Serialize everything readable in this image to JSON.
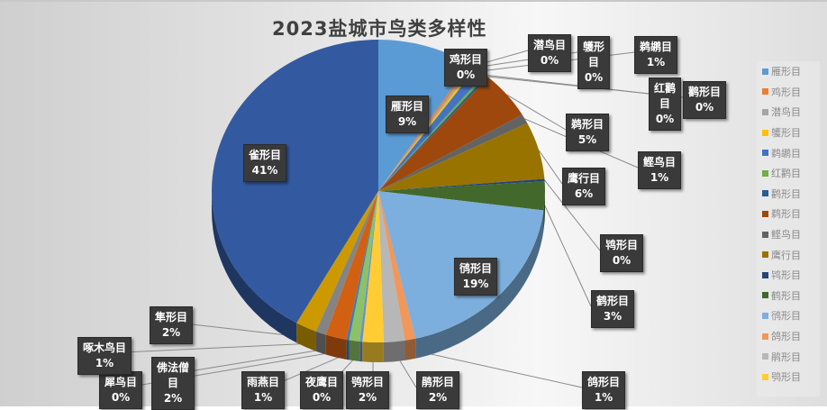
{
  "chart_data": {
    "type": "pie",
    "title": "2023盐城市鸟类多样性",
    "categories": [
      "雁形目",
      "鸡形目",
      "潜鸟目",
      "鹱形目",
      "鹈鹕目",
      "红鹳目",
      "鹳形目",
      "鹈形目",
      "鲣鸟目",
      "鹰行目",
      "鸨形目",
      "鹤形目",
      "鸻形目",
      "鸽形目",
      "鹃形目",
      "鸮形目",
      "夜鹰目",
      "雨燕目",
      "犀鸟目",
      "佛法僧目",
      "啄木鸟目",
      "隼形目",
      "雀形目"
    ],
    "values": [
      9,
      0,
      0,
      0,
      1,
      0,
      0,
      5,
      1,
      6,
      0,
      3,
      19,
      1,
      2,
      2,
      0,
      1,
      0,
      2,
      1,
      2,
      41
    ],
    "value_labels": [
      "9%",
      "0%",
      "0%",
      "0%",
      "1%",
      "0%",
      "0%",
      "5%",
      "1%",
      "6%",
      "0%",
      "3%",
      "19%",
      "1%",
      "2%",
      "2%",
      "0%",
      "1%",
      "0%",
      "2%",
      "1%",
      "2%",
      "41%"
    ],
    "colors": [
      "#5b9bd5",
      "#ed7d31",
      "#a5a5a5",
      "#ffc000",
      "#4472c4",
      "#70ad47",
      "#255e91",
      "#9e480e",
      "#636363",
      "#997300",
      "#264478",
      "#43682b",
      "#7cafdd",
      "#f1975a",
      "#b7b7b7",
      "#ffcd33",
      "#698ed0",
      "#8cc168",
      "#327dc2",
      "#d26012",
      "#848484",
      "#cc9a00",
      "#335aa1"
    ],
    "legend": {
      "position": "right",
      "entries": [
        "雁形目",
        "鸡形目",
        "潜鸟目",
        "鹱形目",
        "鹈鹕目",
        "红鹳目",
        "鹳形目",
        "鹈形目",
        "鲣鸟目",
        "鹰行目",
        "鸨形目",
        "鹤形目",
        "鸻形目",
        "鸽形目",
        "鹃形目",
        "鸮形目"
      ]
    },
    "style": "3d-exploded-labels"
  },
  "labels": [
    {
      "name": "雁形目",
      "pct": "9%"
    },
    {
      "name": "鸡形目",
      "pct": "0%"
    },
    {
      "name": "潜鸟目",
      "pct": "0%"
    },
    {
      "name": "鹱形目",
      "pct": "0%",
      "wrap": "鹱形\n目"
    },
    {
      "name": "鹈鹕目",
      "pct": "1%"
    },
    {
      "name": "红鹳目",
      "pct": "0%",
      "wrap": "红鹳\n目"
    },
    {
      "name": "鹳形目",
      "pct": "0%"
    },
    {
      "name": "鹈形目",
      "pct": "5%"
    },
    {
      "name": "鲣鸟目",
      "pct": "1%"
    },
    {
      "name": "鹰行目",
      "pct": "6%"
    },
    {
      "name": "鸨形目",
      "pct": "0%"
    },
    {
      "name": "鹤形目",
      "pct": "3%"
    },
    {
      "name": "鸻形目",
      "pct": "19%"
    },
    {
      "name": "鸽形目",
      "pct": "1%"
    },
    {
      "name": "鹃形目",
      "pct": "2%"
    },
    {
      "name": "鸮形目",
      "pct": "2%"
    },
    {
      "name": "夜鹰目",
      "pct": "0%"
    },
    {
      "name": "雨燕目",
      "pct": "1%"
    },
    {
      "name": "犀鸟目",
      "pct": "0%"
    },
    {
      "name": "佛法僧目",
      "pct": "2%",
      "wrap": "佛法僧\n目"
    },
    {
      "name": "啄木鸟目",
      "pct": "1%"
    },
    {
      "name": "隼形目",
      "pct": "2%"
    },
    {
      "name": "雀形目",
      "pct": "41%"
    }
  ]
}
